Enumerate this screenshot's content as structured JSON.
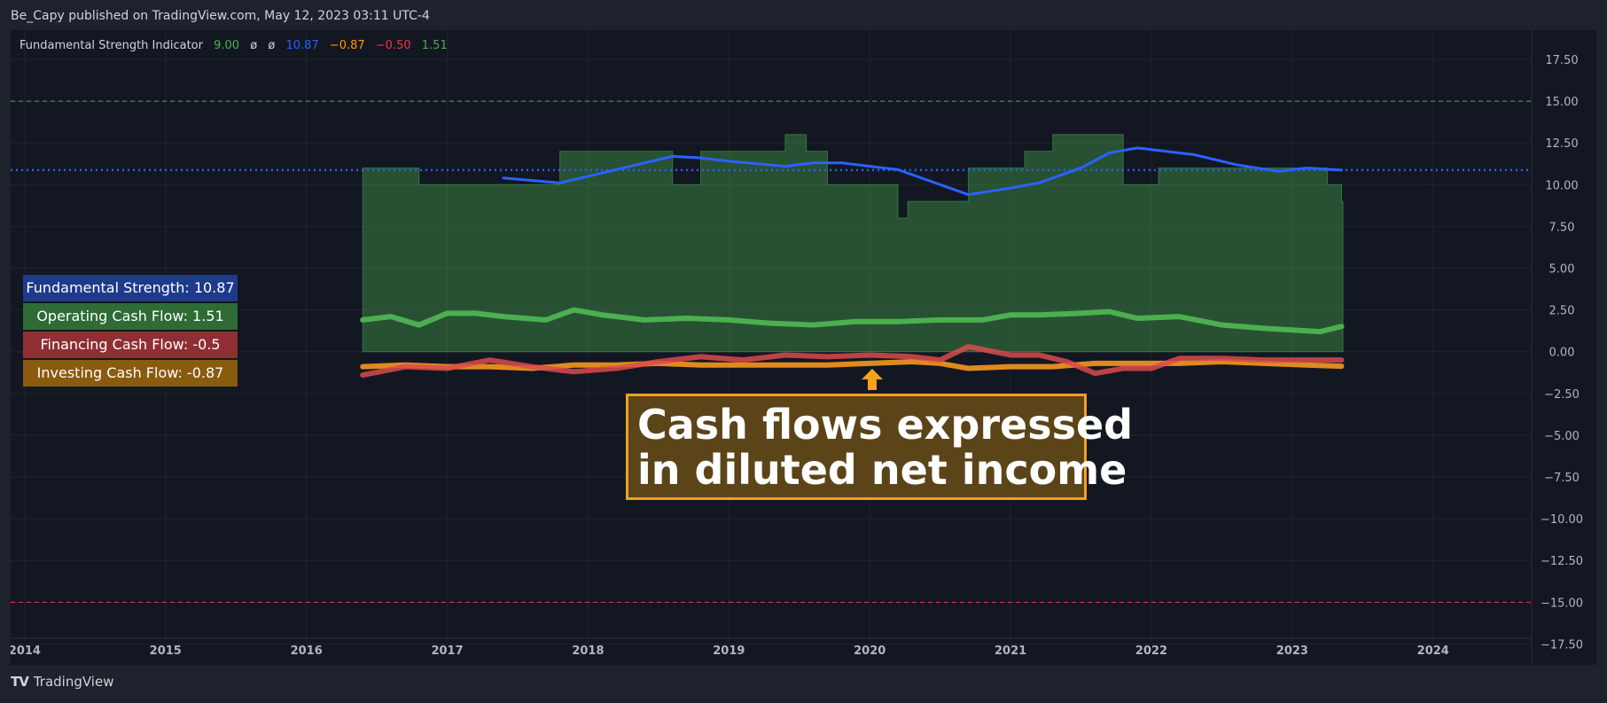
{
  "header": {
    "published": "Be_Capy published on TradingView.com, May 12, 2023 03:11 UTC-4"
  },
  "indicator_legend": {
    "name": "Fundamental Strength Indicator",
    "values": [
      {
        "text": "9.00",
        "color": "#4caf50"
      },
      {
        "text": "ø",
        "color": "#d1d4dc"
      },
      {
        "text": "ø",
        "color": "#d1d4dc"
      },
      {
        "text": "10.87",
        "color": "#2962ff"
      },
      {
        "text": "−0.87",
        "color": "#ff9800"
      },
      {
        "text": "−0.50",
        "color": "#f23645"
      },
      {
        "text": "1.51",
        "color": "#4caf50"
      }
    ]
  },
  "legend_boxes": [
    {
      "label": "Fundamental Strength: 10.87",
      "color": "#1e3a8a"
    },
    {
      "label": "Operating Cash Flow: 1.51",
      "color": "#2e6b35"
    },
    {
      "label": "Financing Cash Flow: -0.5",
      "color": "#8f2f33"
    },
    {
      "label": "Investing Cash Flow: -0.87",
      "color": "#8a5a0f"
    }
  ],
  "callout": {
    "line1": "Cash flows expressed",
    "line2": "in diluted net income"
  },
  "footer": {
    "logo": "TV",
    "brand": "TradingView"
  },
  "chart_data": {
    "type": "line",
    "x_unit": "year",
    "xlim": [
      2013.9,
      2024.7
    ],
    "ylim": [
      -18.75,
      19.25
    ],
    "x_ticks": [
      {
        "value": 2014,
        "label": "2014"
      },
      {
        "value": 2015,
        "label": "2015"
      },
      {
        "value": 2016,
        "label": "2016"
      },
      {
        "value": 2017,
        "label": "2017"
      },
      {
        "value": 2018,
        "label": "2018"
      },
      {
        "value": 2019,
        "label": "2019"
      },
      {
        "value": 2020,
        "label": "2020"
      },
      {
        "value": 2021,
        "label": "2021"
      },
      {
        "value": 2022,
        "label": "2022"
      },
      {
        "value": 2023,
        "label": "2023"
      },
      {
        "value": 2024,
        "label": "2024"
      }
    ],
    "y_ticks": [
      {
        "value": 17.5,
        "label": "17.50"
      },
      {
        "value": 15,
        "label": "15.00"
      },
      {
        "value": 12.5,
        "label": "12.50"
      },
      {
        "value": 10,
        "label": "10.00"
      },
      {
        "value": 7.5,
        "label": "7.50"
      },
      {
        "value": 5,
        "label": "5.00"
      },
      {
        "value": 2.5,
        "label": "2.50"
      },
      {
        "value": 0,
        "label": "0.00"
      },
      {
        "value": -2.5,
        "label": "−2.50"
      },
      {
        "value": -5,
        "label": "−5.00"
      },
      {
        "value": -7.5,
        "label": "−7.50"
      },
      {
        "value": -10,
        "label": "−10.00"
      },
      {
        "value": -12.5,
        "label": "−12.50"
      },
      {
        "value": -15,
        "label": "−15.00"
      },
      {
        "value": -17.5,
        "label": "−17.50"
      }
    ],
    "grid": true,
    "reference_lines": [
      {
        "y": 15,
        "color": "#4caf50",
        "style": "dashed"
      },
      {
        "y": -15,
        "color": "#f23645",
        "style": "dashed"
      },
      {
        "y": 10.87,
        "color": "#2962ff",
        "style": "dotted"
      }
    ],
    "step_area": {
      "color": "#4caf50",
      "points": [
        [
          2016.4,
          11
        ],
        [
          2016.8,
          10
        ],
        [
          2017.8,
          12
        ],
        [
          2018.6,
          10
        ],
        [
          2018.8,
          12
        ],
        [
          2019.4,
          13
        ],
        [
          2019.55,
          12
        ],
        [
          2019.7,
          10
        ],
        [
          2020.2,
          8
        ],
        [
          2020.27,
          9
        ],
        [
          2020.7,
          11
        ],
        [
          2021.1,
          12
        ],
        [
          2021.3,
          13
        ],
        [
          2021.8,
          10
        ],
        [
          2022.05,
          11
        ],
        [
          2023.25,
          10
        ],
        [
          2023.35,
          9
        ],
        [
          2023.36,
          9
        ]
      ]
    },
    "series": [
      {
        "name": "Fundamental Strength",
        "color": "#2962ff",
        "width": 3,
        "x": [
          2017.4,
          2017.8,
          2018.2,
          2018.6,
          2018.8,
          2019.0,
          2019.4,
          2019.6,
          2019.8,
          2020.0,
          2020.2,
          2020.4,
          2020.7,
          2021.0,
          2021.2,
          2021.5,
          2021.7,
          2021.9,
          2022.1,
          2022.3,
          2022.6,
          2022.9,
          2023.1,
          2023.35
        ],
        "y": [
          10.4,
          10.1,
          10.9,
          11.7,
          11.6,
          11.4,
          11.1,
          11.3,
          11.3,
          11.1,
          10.9,
          10.3,
          9.4,
          9.8,
          10.1,
          11.0,
          11.9,
          12.2,
          12.0,
          11.8,
          11.2,
          10.8,
          11.0,
          10.87
        ]
      },
      {
        "name": "Operating Cash Flow",
        "color": "#4caf50",
        "width": 6,
        "x": [
          2016.4,
          2016.6,
          2016.8,
          2017.0,
          2017.2,
          2017.4,
          2017.7,
          2017.9,
          2018.1,
          2018.4,
          2018.7,
          2019.0,
          2019.3,
          2019.6,
          2019.9,
          2020.2,
          2020.5,
          2020.8,
          2021.0,
          2021.2,
          2021.5,
          2021.7,
          2021.9,
          2022.2,
          2022.5,
          2022.8,
          2023.0,
          2023.2,
          2023.35
        ],
        "y": [
          1.9,
          2.1,
          1.6,
          2.3,
          2.3,
          2.1,
          1.9,
          2.5,
          2.2,
          1.9,
          2.0,
          1.9,
          1.7,
          1.6,
          1.8,
          1.8,
          1.9,
          1.9,
          2.2,
          2.2,
          2.3,
          2.4,
          2.0,
          2.1,
          1.6,
          1.4,
          1.3,
          1.2,
          1.51
        ]
      },
      {
        "name": "Financing Cash Flow",
        "color": "#d94b4b",
        "width": 6,
        "x": [
          2016.4,
          2016.7,
          2017.0,
          2017.3,
          2017.6,
          2017.9,
          2018.2,
          2018.5,
          2018.8,
          2019.1,
          2019.4,
          2019.7,
          2020.0,
          2020.3,
          2020.5,
          2020.7,
          2021.0,
          2021.2,
          2021.4,
          2021.6,
          2021.8,
          2022.0,
          2022.2,
          2022.5,
          2022.8,
          2023.1,
          2023.35
        ],
        "y": [
          -1.4,
          -0.9,
          -1.0,
          -0.5,
          -0.9,
          -1.2,
          -1.0,
          -0.6,
          -0.3,
          -0.5,
          -0.2,
          -0.3,
          -0.2,
          -0.3,
          -0.5,
          0.3,
          -0.2,
          -0.2,
          -0.6,
          -1.3,
          -1.0,
          -1.0,
          -0.4,
          -0.4,
          -0.5,
          -0.5,
          -0.5
        ]
      },
      {
        "name": "Investing Cash Flow",
        "color": "#e08a1e",
        "width": 6,
        "x": [
          2016.4,
          2016.7,
          2017.0,
          2017.3,
          2017.6,
          2017.9,
          2018.2,
          2018.5,
          2018.8,
          2019.1,
          2019.4,
          2019.7,
          2020.0,
          2020.3,
          2020.5,
          2020.7,
          2021.0,
          2021.3,
          2021.6,
          2021.9,
          2022.2,
          2022.5,
          2022.8,
          2023.1,
          2023.35
        ],
        "y": [
          -0.9,
          -0.8,
          -0.9,
          -0.9,
          -1.0,
          -0.8,
          -0.8,
          -0.7,
          -0.8,
          -0.8,
          -0.8,
          -0.8,
          -0.7,
          -0.6,
          -0.7,
          -1.0,
          -0.9,
          -0.9,
          -0.7,
          -0.7,
          -0.7,
          -0.6,
          -0.7,
          -0.8,
          -0.87
        ]
      }
    ]
  }
}
